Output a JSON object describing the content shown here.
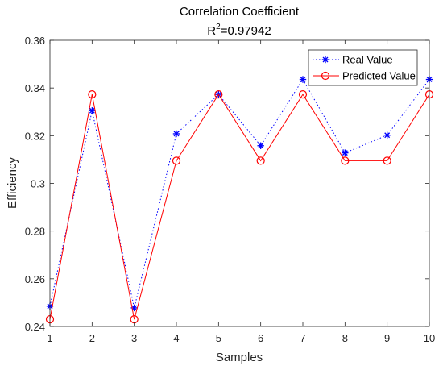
{
  "chart_data": {
    "type": "line",
    "title": "Correlation Coefficient",
    "subtitle_prefix": "R",
    "subtitle_sup": "2",
    "subtitle_value": "=0.97942",
    "xlabel": "Samples",
    "ylabel": "Efficiency",
    "x": [
      1,
      2,
      3,
      4,
      5,
      6,
      7,
      8,
      9,
      10
    ],
    "xlim": [
      1,
      10
    ],
    "ylim": [
      0.24,
      0.36
    ],
    "xticks": [
      "1",
      "2",
      "3",
      "4",
      "5",
      "6",
      "7",
      "8",
      "9",
      "10"
    ],
    "yticks": [
      "0.24",
      "0.26",
      "0.28",
      "0.3",
      "0.32",
      "0.34",
      "0.36"
    ],
    "grid": false,
    "legend_position": "top-right",
    "series": [
      {
        "name": "Real Value",
        "values": [
          0.2485,
          0.3305,
          0.2478,
          0.3208,
          0.3373,
          0.3158,
          0.3436,
          0.3128,
          0.3202,
          0.3436
        ],
        "color": "#0000ff",
        "marker": "asterisk",
        "line_style": "dotted"
      },
      {
        "name": "Predicted Value",
        "values": [
          0.243,
          0.3373,
          0.243,
          0.3095,
          0.3373,
          0.3095,
          0.3373,
          0.3095,
          0.3095,
          0.3373
        ],
        "color": "#ff0000",
        "marker": "circle",
        "line_style": "solid"
      }
    ]
  }
}
